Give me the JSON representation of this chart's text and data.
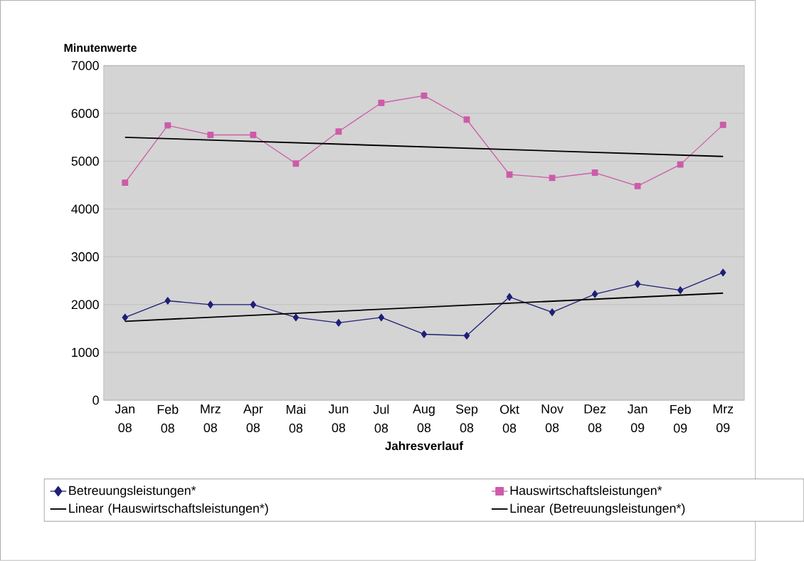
{
  "chart_data": {
    "type": "line",
    "ylabel": "Minutenwerte",
    "xlabel": "Jahresverlauf",
    "categories": [
      "Jan 08",
      "Feb 08",
      "Mrz 08",
      "Apr 08",
      "Mai 08",
      "Jun 08",
      "Jul 08",
      "Aug 08",
      "Sep 08",
      "Okt 08",
      "Nov 08",
      "Dez 08",
      "Jan 09",
      "Feb 09",
      "Mrz 09"
    ],
    "series": [
      {
        "name": "Betreuungsleistungen*",
        "color": "#1f1f78",
        "marker": "diamond",
        "values": [
          1730,
          2080,
          2000,
          2000,
          1730,
          1620,
          1730,
          1380,
          1350,
          2160,
          1840,
          2220,
          2430,
          2300,
          2670
        ]
      },
      {
        "name": "Hauswirtschaftsleistungen*",
        "color": "#cc5ca8",
        "marker": "square",
        "values": [
          4550,
          5750,
          5550,
          5550,
          4950,
          5620,
          6220,
          6370,
          5870,
          4720,
          4650,
          4760,
          4480,
          4930,
          5760
        ]
      },
      {
        "name": "Linear (Hauswirtschaftsleistungen*)",
        "color": "#000000",
        "type": "line",
        "marker": "none",
        "x": [
          "Jan 08",
          "Mrz 09"
        ],
        "values": [
          5500,
          5100
        ]
      },
      {
        "name": "Linear (Betreuungsleistungen*)",
        "color": "#000000",
        "type": "line",
        "marker": "none",
        "x": [
          "Jan 08",
          "Mrz 09"
        ],
        "values": [
          1650,
          2240
        ]
      }
    ],
    "ylim": [
      0,
      7000
    ],
    "yticks": [
      0,
      1000,
      2000,
      3000,
      4000,
      5000,
      6000,
      7000
    ],
    "grid": "y",
    "legend": "bottom"
  }
}
